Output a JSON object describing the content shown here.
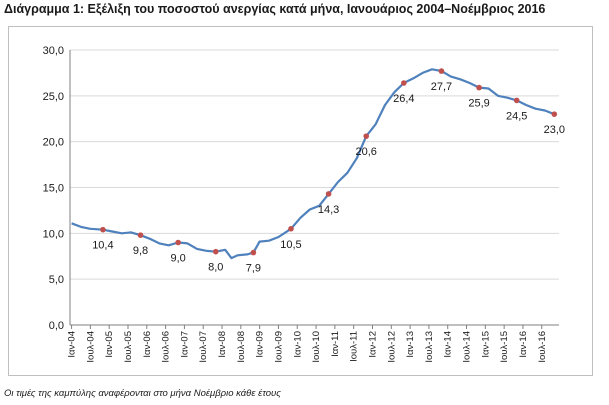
{
  "chart_data": {
    "type": "line",
    "title": "Διάγραμμα 1: Εξέλιξη του ποσοστού ανεργίας κατά μήνα, Ιανουάριος 2004–Νοέμβριος 2016",
    "note": "Οι τιμές της καμπύλης αναφέρονται στο μήνα Νοέμβριο κάθε έτους",
    "xlabel": "",
    "ylabel": "",
    "ylim": [
      0,
      30
    ],
    "yticks": [
      "0,0",
      "5,0",
      "10,0",
      "15,0",
      "20,0",
      "25,0",
      "30,0"
    ],
    "grid": true,
    "legend": "none",
    "line_color": "#4f81bd",
    "marker_color": "#c0504d",
    "x_tick_labels": [
      "Ιαν-04",
      "Ιουλ-04",
      "Ιαν-05",
      "Ιουλ-05",
      "Ιαν-06",
      "Ιουλ-06",
      "Ιαν-07",
      "Ιουλ-07",
      "Ιαν-08",
      "Ιουλ-08",
      "Ιαν-09",
      "Ιουλ-09",
      "Ιαν-10",
      "Ιουλ-10",
      "Ιαν-11",
      "Ιουλ-11",
      "Ιαν-12",
      "Ιουλ-12",
      "Ιαν-13",
      "Ιουλ-13",
      "Ιαν-14",
      "Ιουλ-14",
      "Ιαν-15",
      "Ιουλ-15",
      "Ιαν-16",
      "Ιουλ-16"
    ],
    "series": [
      {
        "points": [
          {
            "x": "Ιαν-04",
            "y": 11.1
          },
          {
            "x": "Απρ-04",
            "y": 10.7
          },
          {
            "x": "Ιουλ-04",
            "y": 10.5
          },
          {
            "x": "Νοε-04",
            "y": 10.4
          },
          {
            "x": "Φεβ-05",
            "y": 10.2
          },
          {
            "x": "Μαϊ-05",
            "y": 10.0
          },
          {
            "x": "Αυγ-05",
            "y": 10.1
          },
          {
            "x": "Νοε-05",
            "y": 9.8
          },
          {
            "x": "Φεβ-06",
            "y": 9.4
          },
          {
            "x": "Μαϊ-06",
            "y": 8.9
          },
          {
            "x": "Αυγ-06",
            "y": 8.7
          },
          {
            "x": "Νοε-06",
            "y": 9.0
          },
          {
            "x": "Φεβ-07",
            "y": 8.9
          },
          {
            "x": "Μαϊ-07",
            "y": 8.3
          },
          {
            "x": "Αυγ-07",
            "y": 8.1
          },
          {
            "x": "Νοε-07",
            "y": 8.0
          },
          {
            "x": "Φεβ-08",
            "y": 8.2
          },
          {
            "x": "Απρ-08",
            "y": 7.3
          },
          {
            "x": "Ιουν-08",
            "y": 7.6
          },
          {
            "x": "Σεπ-08",
            "y": 7.7
          },
          {
            "x": "Νοε-08",
            "y": 7.9
          },
          {
            "x": "Ιαν-09",
            "y": 9.1
          },
          {
            "x": "Απρ-09",
            "y": 9.2
          },
          {
            "x": "Ιουλ-09",
            "y": 9.6
          },
          {
            "x": "Νοε-09",
            "y": 10.5
          },
          {
            "x": "Φεβ-10",
            "y": 11.7
          },
          {
            "x": "Μαϊ-10",
            "y": 12.6
          },
          {
            "x": "Αυγ-10",
            "y": 13.0
          },
          {
            "x": "Νοε-10",
            "y": 14.3
          },
          {
            "x": "Φεβ-11",
            "y": 15.6
          },
          {
            "x": "Μαϊ-11",
            "y": 16.6
          },
          {
            "x": "Αυγ-11",
            "y": 18.2
          },
          {
            "x": "Νοε-11",
            "y": 20.6
          },
          {
            "x": "Φεβ-12",
            "y": 21.9
          },
          {
            "x": "Μαϊ-12",
            "y": 24.0
          },
          {
            "x": "Αυγ-12",
            "y": 25.4
          },
          {
            "x": "Νοε-12",
            "y": 26.4
          },
          {
            "x": "Φεβ-13",
            "y": 26.9
          },
          {
            "x": "Μαϊ-13",
            "y": 27.5
          },
          {
            "x": "Αυγ-13",
            "y": 27.9
          },
          {
            "x": "Νοε-13",
            "y": 27.7
          },
          {
            "x": "Φεβ-14",
            "y": 27.1
          },
          {
            "x": "Μαϊ-14",
            "y": 26.8
          },
          {
            "x": "Αυγ-14",
            "y": 26.4
          },
          {
            "x": "Νοε-14",
            "y": 25.9
          },
          {
            "x": "Φεβ-15",
            "y": 25.8
          },
          {
            "x": "Μαϊ-15",
            "y": 25.0
          },
          {
            "x": "Αυγ-15",
            "y": 24.8
          },
          {
            "x": "Νοε-15",
            "y": 24.5
          },
          {
            "x": "Φεβ-16",
            "y": 24.0
          },
          {
            "x": "Μαϊ-16",
            "y": 23.6
          },
          {
            "x": "Αυγ-16",
            "y": 23.4
          },
          {
            "x": "Νοε-16",
            "y": 23.0
          }
        ],
        "markers": [
          {
            "x": "Νοε-04",
            "y": 10.4,
            "label": "10,4"
          },
          {
            "x": "Νοε-05",
            "y": 9.8,
            "label": "9,8"
          },
          {
            "x": "Νοε-06",
            "y": 9.0,
            "label": "9,0"
          },
          {
            "x": "Νοε-07",
            "y": 8.0,
            "label": "8,0"
          },
          {
            "x": "Νοε-08",
            "y": 7.9,
            "label": "7,9"
          },
          {
            "x": "Νοε-09",
            "y": 10.5,
            "label": "10,5"
          },
          {
            "x": "Νοε-10",
            "y": 14.3,
            "label": "14,3"
          },
          {
            "x": "Νοε-11",
            "y": 20.6,
            "label": "20,6"
          },
          {
            "x": "Νοε-12",
            "y": 26.4,
            "label": "26,4"
          },
          {
            "x": "Νοε-13",
            "y": 27.7,
            "label": "27,7"
          },
          {
            "x": "Νοε-14",
            "y": 25.9,
            "label": "25,9"
          },
          {
            "x": "Νοε-15",
            "y": 24.5,
            "label": "24,5"
          },
          {
            "x": "Νοε-16",
            "y": 23.0,
            "label": "23,0"
          }
        ]
      }
    ]
  }
}
